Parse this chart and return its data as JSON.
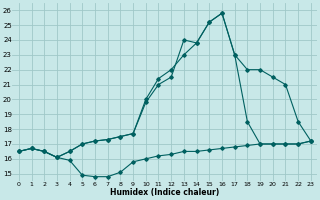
{
  "xlabel": "Humidex (Indice chaleur)",
  "bg_color": "#c8e8e8",
  "grid_color": "#a0c8c8",
  "line_color": "#006060",
  "curve1_x": [
    0,
    1,
    2,
    3,
    4,
    5,
    6,
    7,
    8,
    9,
    10,
    11,
    12,
    13,
    14,
    15,
    16,
    17,
    18,
    19,
    20,
    21,
    22,
    23
  ],
  "curve1_y": [
    16.5,
    16.7,
    16.5,
    16.1,
    15.9,
    14.9,
    14.8,
    14.8,
    15.1,
    15.8,
    16.0,
    16.2,
    16.3,
    16.5,
    16.5,
    16.6,
    16.7,
    16.8,
    16.9,
    17.0,
    17.0,
    17.0,
    17.0,
    17.2
  ],
  "curve2_x": [
    0,
    1,
    2,
    3,
    4,
    5,
    6,
    7,
    8,
    9,
    10,
    11,
    12,
    13,
    14,
    15,
    16,
    17,
    18,
    19,
    20,
    21,
    22,
    23
  ],
  "curve2_y": [
    16.5,
    16.7,
    16.5,
    16.1,
    16.5,
    17.0,
    17.2,
    17.3,
    17.5,
    17.7,
    20.0,
    21.4,
    22.0,
    23.0,
    23.8,
    25.2,
    25.8,
    23.0,
    22.0,
    22.0,
    21.5,
    21.0,
    18.5,
    17.2
  ],
  "curve3_x": [
    0,
    1,
    2,
    3,
    4,
    5,
    6,
    7,
    8,
    9,
    10,
    11,
    12,
    13,
    14,
    15,
    16,
    17,
    18,
    19,
    20,
    21,
    22,
    23
  ],
  "curve3_y": [
    16.5,
    16.7,
    16.5,
    16.1,
    16.5,
    17.0,
    17.2,
    17.3,
    17.5,
    17.7,
    19.8,
    21.0,
    21.5,
    24.0,
    23.8,
    25.2,
    25.8,
    23.0,
    18.5,
    17.0,
    17.0,
    17.0,
    17.0,
    17.2
  ],
  "xlim": [
    -0.5,
    23.5
  ],
  "ylim": [
    14.5,
    26.5
  ],
  "xticks": [
    0,
    1,
    2,
    3,
    4,
    5,
    6,
    7,
    8,
    9,
    10,
    11,
    12,
    13,
    14,
    15,
    16,
    17,
    18,
    19,
    20,
    21,
    22,
    23
  ],
  "yticks": [
    15,
    16,
    17,
    18,
    19,
    20,
    21,
    22,
    23,
    24,
    25,
    26
  ]
}
